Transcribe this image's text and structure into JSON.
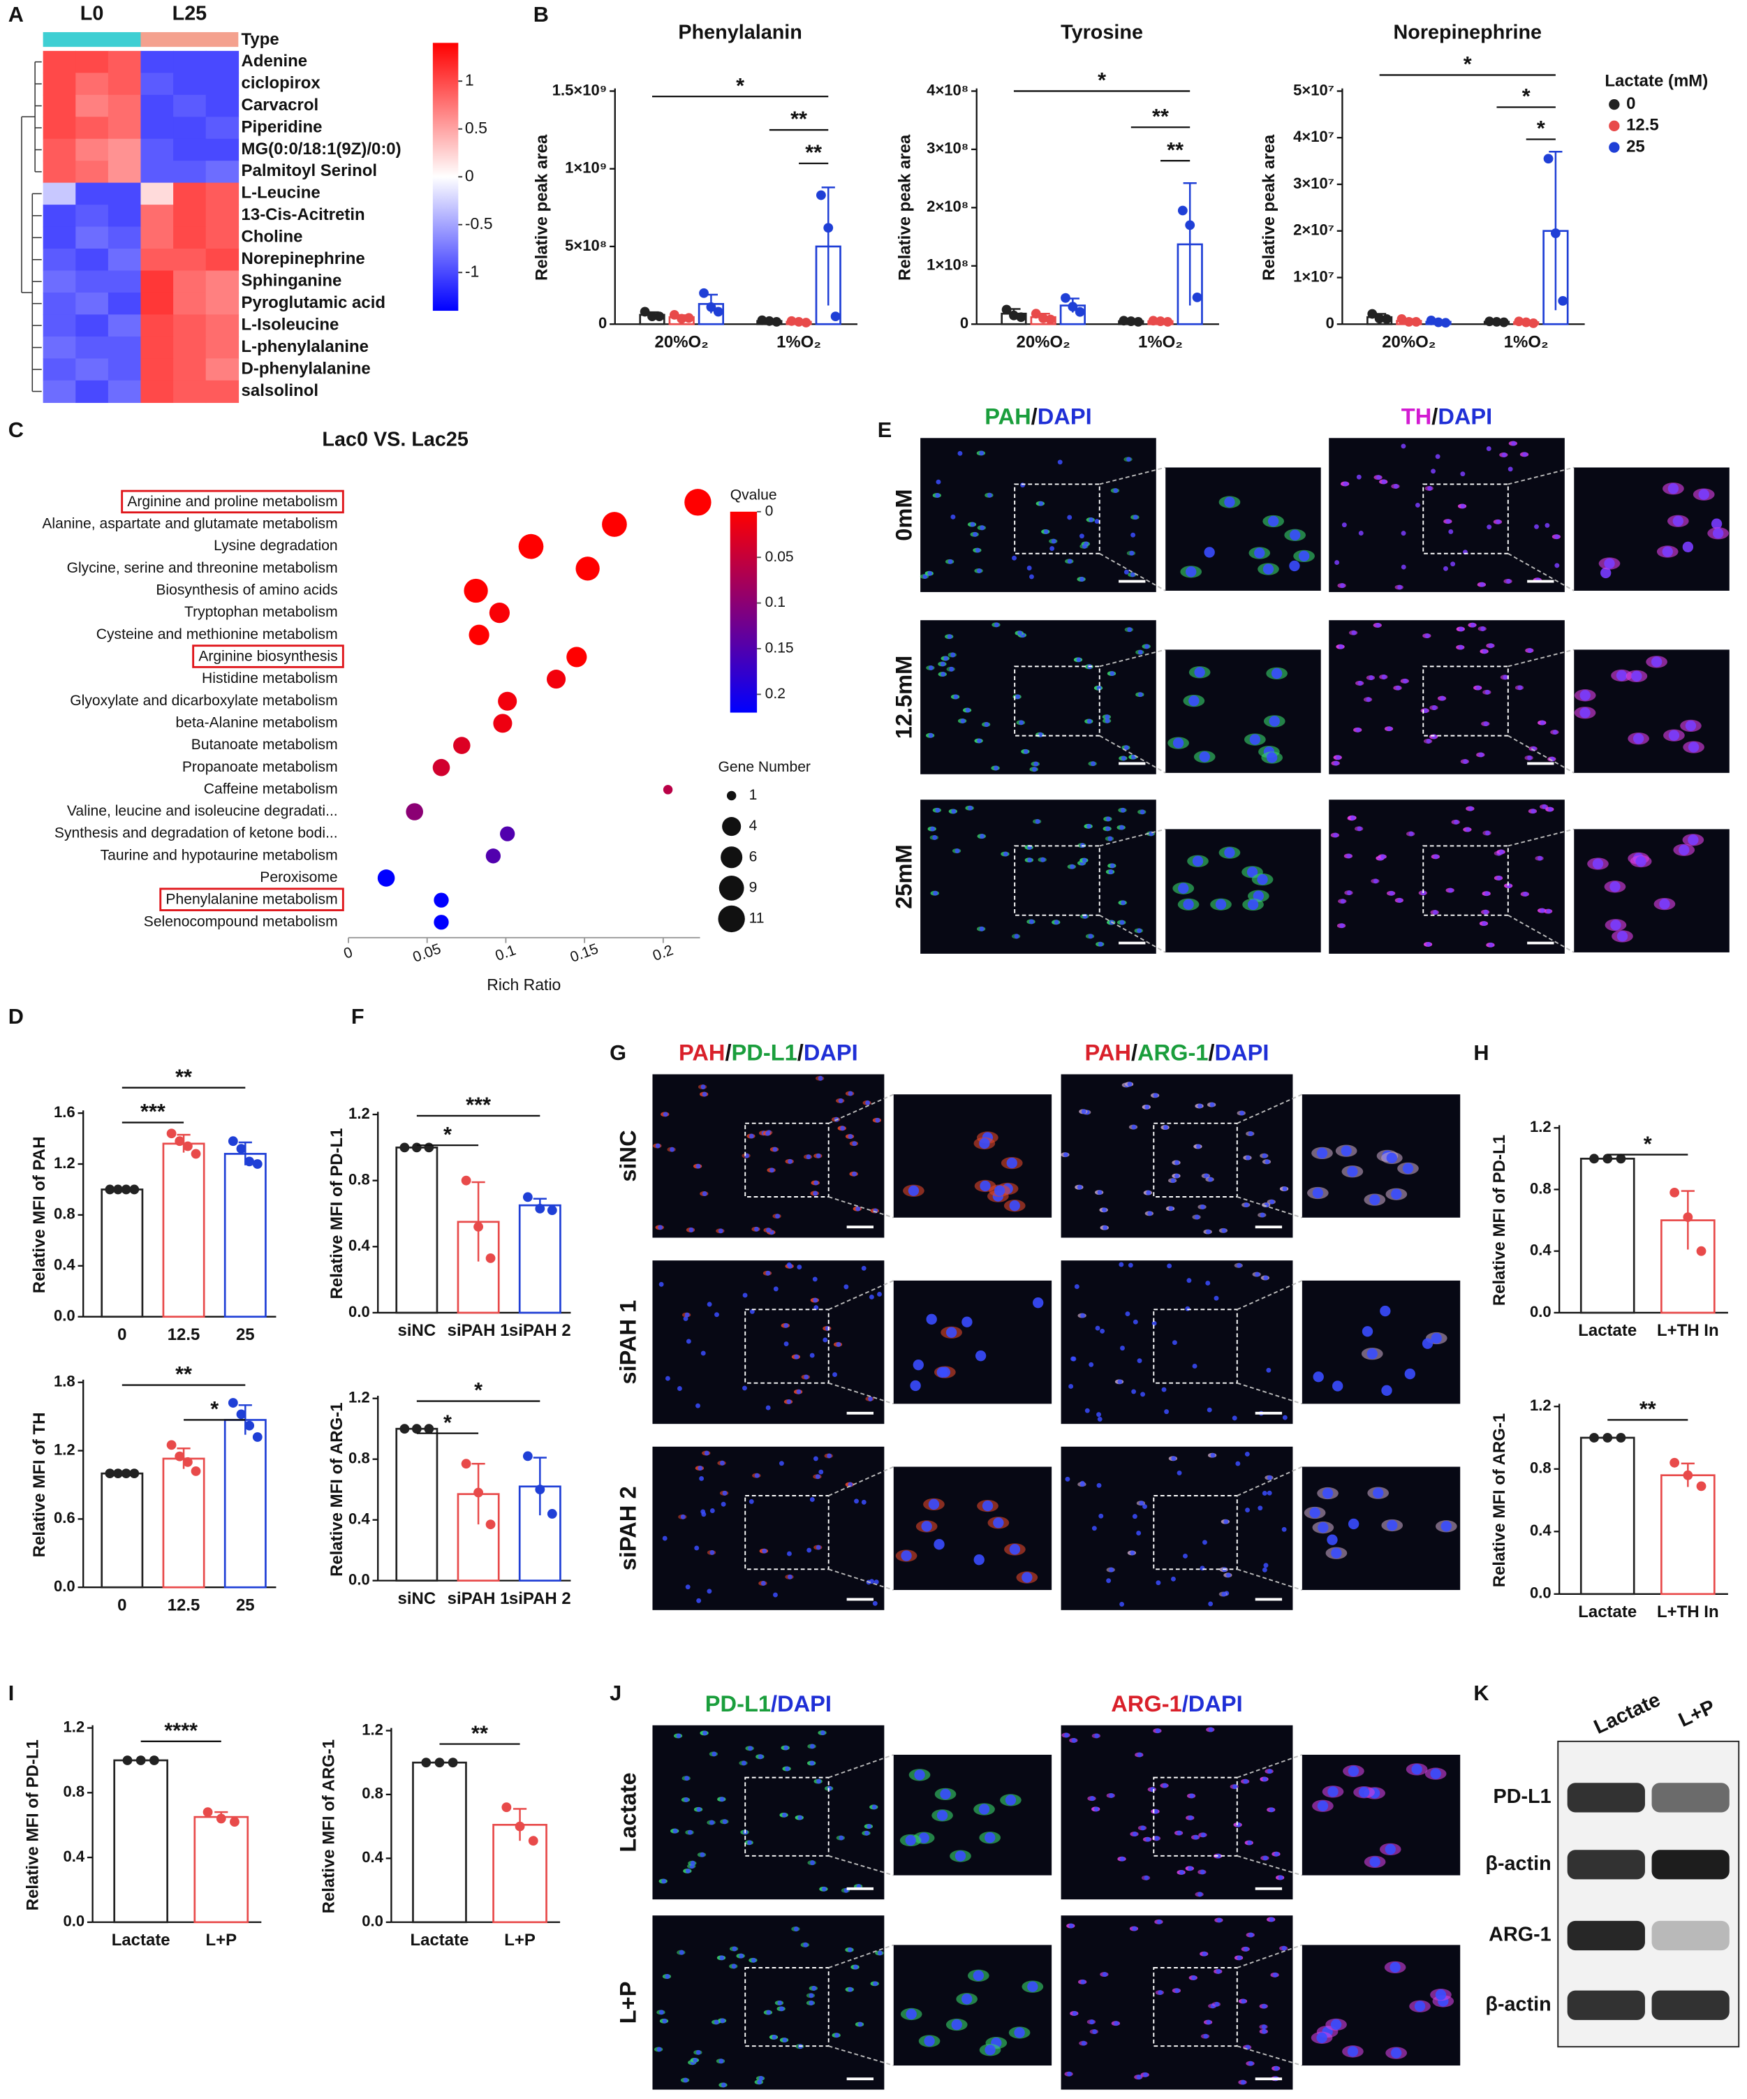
{
  "panel_labels": [
    "A",
    "B",
    "C",
    "D",
    "E",
    "F",
    "G",
    "H",
    "I",
    "J",
    "K"
  ],
  "chart_data": [
    {
      "type": "heatmap",
      "columns": [
        "L0",
        "L25"
      ],
      "group_colors": [
        "#3ecfd3",
        "#f4a18e"
      ],
      "type_label": "Type",
      "rows": [
        "Adenine",
        "ciclopirox",
        "Carvacrol",
        "Piperidine",
        "MG(0:0/18:1(9Z)/0:0)",
        "Palmitoyl Serinol",
        "L-Leucine",
        "13-Cis-Acitretin",
        "Choline",
        "Norepinephrine",
        "Sphinganine",
        "Pyroglutamic acid",
        "L-Isoleucine",
        "L-phenylalanine",
        "D-phenylalanine",
        "salsolinol"
      ],
      "values": [
        [
          1,
          1,
          0.9,
          -1,
          -1,
          -1
        ],
        [
          1,
          0.8,
          0.9,
          -0.9,
          -1,
          -1
        ],
        [
          1,
          0.7,
          0.8,
          -1,
          -0.9,
          -1
        ],
        [
          1,
          0.9,
          0.8,
          -1,
          -1,
          -0.9
        ],
        [
          0.9,
          0.7,
          0.6,
          -0.9,
          -1,
          -1
        ],
        [
          0.9,
          0.8,
          0.6,
          -0.9,
          -0.9,
          -0.8
        ],
        [
          -0.3,
          -1,
          -1,
          0.2,
          1,
          0.9
        ],
        [
          -1,
          -0.9,
          -1,
          0.8,
          1,
          0.9
        ],
        [
          -1,
          -0.8,
          -0.9,
          0.8,
          1,
          0.9
        ],
        [
          -0.9,
          -1,
          -0.8,
          0.9,
          0.9,
          1
        ],
        [
          -0.8,
          -0.9,
          -0.9,
          1.1,
          0.8,
          0.7
        ],
        [
          -0.9,
          -0.8,
          -1,
          1.1,
          0.8,
          0.7
        ],
        [
          -0.9,
          -1,
          -0.8,
          1,
          0.9,
          0.8
        ],
        [
          -0.8,
          -0.9,
          -0.9,
          1,
          0.9,
          0.8
        ],
        [
          -0.9,
          -0.8,
          -0.9,
          1,
          0.9,
          0.7
        ],
        [
          -0.8,
          -1,
          -0.8,
          1,
          0.9,
          0.9
        ]
      ],
      "clim": [
        -1.4,
        1.4
      ],
      "cticks": [
        1,
        0.5,
        0,
        -0.5,
        -1
      ],
      "colors": [
        "#0000ff",
        "#ffffff",
        "#ff0000"
      ]
    },
    {
      "type": "bar",
      "title": "Phenylalanin",
      "ylabel": "Relative peak area",
      "categories": [
        "20%O₂",
        "1%O₂"
      ],
      "ylim": [
        0,
        1500000000
      ],
      "yticks": [
        0,
        {
          "value": 500000000,
          "label": "5×10⁸"
        },
        {
          "value": 1000000000,
          "label": "1×10⁹"
        },
        {
          "value": 1500000000,
          "label": "1.5×10⁹"
        }
      ],
      "series": [
        {
          "color": "#222222",
          "values": [
            60000000,
            20000000
          ],
          "errors": [
            17000000,
            5000000
          ],
          "points": [
            [
              80000000,
              50000000,
              50000000
            ],
            [
              25000000,
              20000000,
              15000000
            ]
          ]
        },
        {
          "color": "#e84a4a",
          "values": [
            45000000,
            15000000
          ],
          "errors": [
            13000000,
            5000000
          ],
          "points": [
            [
              60000000,
              35000000,
              40000000
            ],
            [
              20000000,
              15000000,
              10000000
            ]
          ]
        },
        {
          "color": "#1f3fd6",
          "values": [
            130000000,
            500000000
          ],
          "errors": [
            60000000,
            380000000
          ],
          "points": [
            [
              200000000,
              110000000,
              80000000
            ],
            [
              830000000,
              620000000,
              50000000
            ]
          ]
        }
      ],
      "significance": [
        "*",
        "**",
        "**"
      ]
    },
    {
      "type": "bar",
      "title": "Tyrosine",
      "ylabel": "Relative peak area",
      "categories": [
        "20%O₂",
        "1%O₂"
      ],
      "ylim": [
        0,
        400000000
      ],
      "yticks": [
        0,
        {
          "value": 100000000,
          "label": "1×10⁸"
        },
        {
          "value": 200000000,
          "label": "2×10⁸"
        },
        {
          "value": 300000000,
          "label": "3×10⁸"
        },
        {
          "value": 400000000,
          "label": "4×10⁸"
        }
      ],
      "series": [
        {
          "color": "#222222",
          "values": [
            18000000,
            5000000
          ],
          "errors": [
            8000000,
            2000000
          ],
          "points": [
            [
              25000000,
              15000000,
              12000000
            ],
            [
              6000000,
              5000000,
              4000000
            ]
          ]
        },
        {
          "color": "#e84a4a",
          "values": [
            12000000,
            5000000
          ],
          "errors": [
            6000000,
            2000000
          ],
          "points": [
            [
              18000000,
              10000000,
              8000000
            ],
            [
              6000000,
              5000000,
              4000000
            ]
          ]
        },
        {
          "color": "#1f3fd6",
          "values": [
            32000000,
            137000000
          ],
          "errors": [
            12000000,
            105000000
          ],
          "points": [
            [
              45000000,
              30000000,
              21000000
            ],
            [
              195000000,
              170000000,
              46000000
            ]
          ]
        }
      ],
      "significance": [
        "*",
        "**",
        "**"
      ]
    },
    {
      "type": "bar",
      "title": "Norepinephrine",
      "ylabel": "Relative peak area",
      "categories": [
        "20%O₂",
        "1%O₂"
      ],
      "legend_title": "Lactate (mM)",
      "ylim": [
        0,
        50000000
      ],
      "yticks": [
        0,
        {
          "value": 10000000,
          "label": "1×10⁷"
        },
        {
          "value": 20000000,
          "label": "2×10⁷"
        },
        {
          "value": 30000000,
          "label": "3×10⁷"
        },
        {
          "value": 40000000,
          "label": "4×10⁷"
        },
        {
          "value": 50000000,
          "label": "5×10⁷"
        }
      ],
      "series": [
        {
          "name": "0",
          "color": "#222222",
          "values": [
            1500000,
            500000
          ],
          "errors": [
            700000,
            200000
          ],
          "points": [
            [
              2200000,
              1200000,
              1100000
            ],
            [
              600000,
              500000,
              400000
            ]
          ]
        },
        {
          "name": "12.5",
          "color": "#e84a4a",
          "values": [
            700000,
            400000
          ],
          "errors": [
            400000,
            200000
          ],
          "points": [
            [
              1100000,
              500000,
              500000
            ],
            [
              600000,
              400000,
              200000
            ]
          ]
        },
        {
          "name": "25",
          "color": "#1f3fd6",
          "values": [
            500000,
            20000000
          ],
          "errors": [
            300000,
            17000000
          ],
          "points": [
            [
              800000,
              400000,
              300000
            ],
            [
              35500000,
              19500000,
              5000000
            ]
          ]
        }
      ],
      "significance": [
        "*",
        "*",
        "*"
      ]
    },
    {
      "type": "bubble",
      "title": "Lac0 VS. Lac25",
      "xlabel": "Rich Ratio",
      "categories": [
        "Arginine and proline metabolism",
        "Alanine, aspartate and glutamate metabolism",
        "Lysine degradation",
        "Glycine, serine and threonine metabolism",
        "Biosynthesis of amino acids",
        "Tryptophan metabolism",
        "Cysteine and methionine metabolism",
        "Arginine biosynthesis",
        "Histidine metabolism",
        "Glyoxylate and dicarboxylate metabolism",
        "beta-Alanine metabolism",
        "Butanoate metabolism",
        "Propanoate metabolism",
        "Caffeine metabolism",
        "Valine, leucine and isoleucine degradati...",
        "Synthesis and degradation of ketone bodi...",
        "Taurine and hypotaurine metabolism",
        "Peroxisome",
        "Phenylalanine metabolism",
        "Selenocompound metabolism"
      ],
      "x": [
        0.222,
        0.169,
        0.116,
        0.152,
        0.081,
        0.096,
        0.083,
        0.145,
        0.132,
        0.101,
        0.098,
        0.072,
        0.059,
        0.203,
        0.042,
        0.101,
        0.092,
        0.024,
        0.059,
        0.059
      ],
      "sizes": [
        11,
        9,
        9,
        8,
        8,
        5,
        5,
        5,
        4,
        4,
        4,
        3,
        3,
        1,
        3,
        2,
        2,
        3,
        2,
        2
      ],
      "qvalues": [
        0,
        0,
        0,
        0,
        0,
        0.005,
        0,
        0,
        0.01,
        0.01,
        0.015,
        0.03,
        0.04,
        0.06,
        0.1,
        0.15,
        0.15,
        0.22,
        0.22,
        0.22
      ],
      "xlim": [
        0,
        0.22
      ],
      "xticks": [
        0,
        0.05,
        0.1,
        0.15,
        0.2
      ],
      "qvalue_label": "Qvalue",
      "qlim": [
        0,
        0.22
      ],
      "qticks": [
        0,
        0.05,
        0.1,
        0.15,
        0.2
      ],
      "colors": [
        "#ff0000",
        "#0000ff"
      ],
      "size_label": "Gene Number",
      "size_ticks": [
        1,
        4,
        6,
        9,
        11
      ],
      "highlight": [
        0,
        7,
        18
      ]
    },
    {
      "type": "bar",
      "ylabel": "Relative MFI of PAH",
      "categories": [
        "0",
        "12.5",
        "25"
      ],
      "colors": [
        "#222222",
        "#e84a4a",
        "#1f3fd6"
      ],
      "values": [
        1,
        1.36,
        1.28
      ],
      "errors": [
        0,
        0.07,
        0.09
      ],
      "points": [
        [
          1,
          1,
          1,
          1
        ],
        [
          1.44,
          1.38,
          1.34,
          1.28
        ],
        [
          1.38,
          1.32,
          1.22,
          1.2
        ]
      ],
      "ylim": [
        0,
        1.6
      ],
      "yticks": [
        {
          "value": 0,
          "label": "0.0"
        },
        0.4,
        0.8,
        1.2,
        1.6
      ],
      "significance": [
        "**",
        "***"
      ]
    },
    {
      "type": "bar",
      "ylabel": "Relative MFI of TH",
      "categories": [
        "0",
        "12.5",
        "25"
      ],
      "colors": [
        "#222222",
        "#e84a4a",
        "#1f3fd6"
      ],
      "values": [
        1,
        1.13,
        1.47
      ],
      "errors": [
        0,
        0.09,
        0.13
      ],
      "points": [
        [
          1,
          1,
          1,
          1
        ],
        [
          1.25,
          1.15,
          1.1,
          1.02
        ],
        [
          1.62,
          1.52,
          1.42,
          1.32
        ]
      ],
      "ylim": [
        0,
        1.8
      ],
      "yticks": [
        {
          "value": 0,
          "label": "0.0"
        },
        0.6,
        1.2,
        1.8
      ],
      "significance": [
        "**",
        "*"
      ]
    },
    {
      "type": "bar",
      "ylabel": "Relative MFI of PD-L1",
      "categories": [
        "siNC",
        "siPAH 1",
        "siPAH 2"
      ],
      "colors": [
        "#222222",
        "#e84a4a",
        "#1f3fd6"
      ],
      "values": [
        1,
        0.55,
        0.65
      ],
      "errors": [
        0,
        0.24,
        0.04
      ],
      "points": [
        [
          1,
          1,
          1
        ],
        [
          0.8,
          0.52,
          0.33
        ],
        [
          0.7,
          0.63,
          0.62
        ]
      ],
      "ylim": [
        0,
        1.2
      ],
      "yticks": [
        {
          "value": 0,
          "label": "0.0"
        },
        0.4,
        0.8,
        1.2
      ],
      "significance": [
        "***",
        "*"
      ]
    },
    {
      "type": "bar",
      "ylabel": "Relative MFI of ARG-1",
      "categories": [
        "siNC",
        "siPAH 1",
        "siPAH 2"
      ],
      "colors": [
        "#222222",
        "#e84a4a",
        "#1f3fd6"
      ],
      "values": [
        1,
        0.57,
        0.62
      ],
      "errors": [
        0,
        0.2,
        0.19
      ],
      "points": [
        [
          1,
          1,
          1
        ],
        [
          0.77,
          0.58,
          0.37
        ],
        [
          0.82,
          0.6,
          0.44
        ]
      ],
      "ylim": [
        0,
        1.2
      ],
      "yticks": [
        {
          "value": 0,
          "label": "0.0"
        },
        0.4,
        0.8,
        1.2
      ],
      "significance": [
        "*",
        "*"
      ]
    },
    {
      "type": "bar",
      "ylabel": "Relative MFI of PD-L1",
      "categories": [
        "Lactate",
        "L+TH In"
      ],
      "colors": [
        "#222222",
        "#e84a4a"
      ],
      "values": [
        1,
        0.6
      ],
      "errors": [
        0,
        0.19
      ],
      "points": [
        [
          1,
          1,
          1
        ],
        [
          0.78,
          0.62,
          0.4
        ]
      ],
      "ylim": [
        0,
        1.2
      ],
      "yticks": [
        {
          "value": 0,
          "label": "0.0"
        },
        0.4,
        0.8,
        1.2
      ],
      "significance": [
        "*"
      ]
    },
    {
      "type": "bar",
      "ylabel": "Relative MFI of ARG-1",
      "categories": [
        "Lactate",
        "L+TH In"
      ],
      "colors": [
        "#222222",
        "#e84a4a"
      ],
      "values": [
        1,
        0.76
      ],
      "errors": [
        0,
        0.075
      ],
      "points": [
        [
          1,
          1,
          1
        ],
        [
          0.84,
          0.76,
          0.69
        ]
      ],
      "ylim": [
        0,
        1.2
      ],
      "yticks": [
        {
          "value": 0,
          "label": "0.0"
        },
        0.4,
        0.8,
        1.2
      ],
      "significance": [
        "**"
      ]
    },
    {
      "type": "bar",
      "ylabel": "Relative MFI of PD-L1",
      "categories": [
        "Lactate",
        "L+P"
      ],
      "colors": [
        "#222222",
        "#e84a4a"
      ],
      "values": [
        1,
        0.65
      ],
      "errors": [
        0,
        0.03
      ],
      "points": [
        [
          1,
          1,
          1
        ],
        [
          0.68,
          0.64,
          0.62
        ]
      ],
      "ylim": [
        0,
        1.2
      ],
      "yticks": [
        {
          "value": 0,
          "label": "0.0"
        },
        0.4,
        0.8,
        1.2
      ],
      "significance": [
        "****"
      ]
    },
    {
      "type": "bar",
      "ylabel": "Relative MFI of ARG-1",
      "categories": [
        "Lactate",
        "L+P"
      ],
      "colors": [
        "#222222",
        "#e84a4a"
      ],
      "values": [
        1,
        0.61
      ],
      "errors": [
        0,
        0.1
      ],
      "points": [
        [
          1,
          1,
          1
        ],
        [
          0.72,
          0.6,
          0.51
        ]
      ],
      "ylim": [
        0,
        1.2
      ],
      "yticks": [
        {
          "value": 0,
          "label": "0.0"
        },
        0.4,
        0.8,
        1.2
      ],
      "significance": [
        "**"
      ]
    }
  ],
  "micrographs": [
    {
      "columns": [
        {
          "parts": [
            "PAH",
            "/",
            "DAPI"
          ],
          "colors": [
            "#1a9e3c",
            "#111111",
            "#1f2fd6"
          ]
        },
        {
          "parts": [
            "TH",
            "/",
            "DAPI"
          ],
          "colors": [
            "#d21bd2",
            "#111111",
            "#1f2fd6"
          ]
        }
      ],
      "rows": [
        "0mM",
        "12.5mM",
        "25mM"
      ]
    },
    {
      "columns": [
        {
          "parts": [
            "PAH",
            "/",
            "PD-L1",
            "/",
            "DAPI"
          ],
          "colors": [
            "#d9202a",
            "#111111",
            "#1a9e3c",
            "#111111",
            "#1f2fd6"
          ]
        },
        {
          "parts": [
            "PAH",
            "/",
            "ARG-1",
            "/",
            "DAPI"
          ],
          "colors": [
            "#d9202a",
            "#111111",
            "#1a9e3c",
            "#111111",
            "#1f2fd6"
          ]
        }
      ],
      "rows": [
        "siNC",
        "siPAH 1",
        "siPAH 2"
      ]
    },
    {
      "columns": [
        {
          "parts": [
            "PD-L1",
            "/",
            "DAPI"
          ],
          "colors": [
            "#1a9e3c",
            "#1f2fd6",
            "#1f2fd6"
          ]
        },
        {
          "parts": [
            "ARG-1",
            "/",
            "DAPI"
          ],
          "colors": [
            "#d9202a",
            "#1f2fd6",
            "#1f2fd6"
          ]
        }
      ],
      "rows": [
        "Lactate",
        "L+P"
      ]
    }
  ],
  "blot": {
    "columns": [
      "Lactate",
      "L+P"
    ],
    "rows": [
      "PD-L1",
      "β-actin",
      "ARG-1",
      "β-actin"
    ]
  }
}
